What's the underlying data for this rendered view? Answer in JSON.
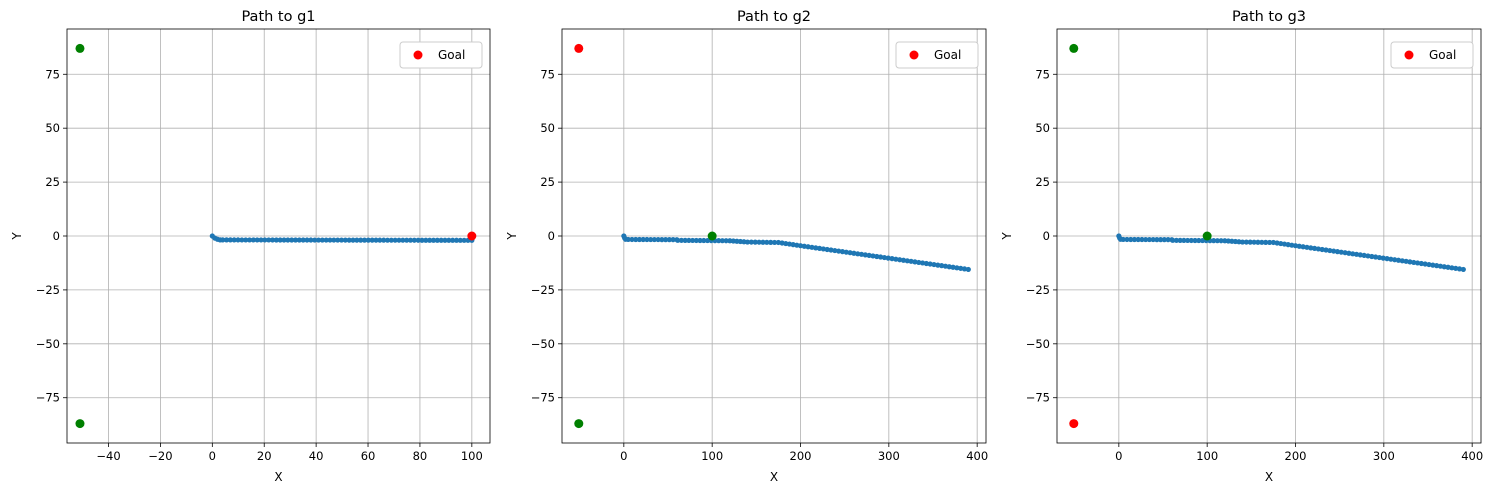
{
  "chart_data": [
    {
      "type": "scatter",
      "title": "Path to g1",
      "xlabel": "X",
      "ylabel": "Y",
      "xlim": [
        -56,
        107
      ],
      "ylim": [
        -96,
        96
      ],
      "xticks": [
        -40,
        -20,
        0,
        20,
        40,
        60,
        80,
        100
      ],
      "yticks": [
        -75,
        -50,
        -25,
        0,
        25,
        50,
        75
      ],
      "grid": true,
      "legend": {
        "position": "top-right",
        "label": "Goal"
      },
      "path": {
        "color": "#1f77b4",
        "points": [
          [
            0,
            0
          ],
          [
            1,
            -1
          ],
          [
            2,
            -1.5
          ],
          [
            3,
            -1.8
          ],
          [
            4,
            -1.8
          ],
          [
            100,
            -2
          ]
        ]
      },
      "other_goals": {
        "color": "#008000",
        "points": [
          [
            -51,
            87
          ],
          [
            -51,
            -87
          ]
        ]
      },
      "goal": {
        "color": "#ff0000",
        "label": "Goal",
        "points": [
          [
            100,
            0
          ]
        ]
      }
    },
    {
      "type": "scatter",
      "title": "Path to g2",
      "xlabel": "X",
      "ylabel": "Y",
      "xlim": [
        -70,
        410
      ],
      "ylim": [
        -96,
        96
      ],
      "xticks": [
        0,
        100,
        200,
        300,
        400
      ],
      "yticks": [
        -75,
        -50,
        -25,
        0,
        25,
        50,
        75
      ],
      "grid": true,
      "legend": {
        "position": "top-right",
        "label": "Goal"
      },
      "path": {
        "color": "#1f77b4",
        "points": [
          [
            0,
            0
          ],
          [
            1,
            -1
          ],
          [
            2,
            -1.5
          ],
          [
            5,
            -1.6
          ],
          [
            60,
            -1.7
          ],
          [
            61,
            -2
          ],
          [
            120,
            -2.2
          ],
          [
            140,
            -2.8
          ],
          [
            175,
            -3
          ],
          [
            200,
            -4.5
          ],
          [
            390,
            -15.5
          ]
        ]
      },
      "other_goals": {
        "color": "#008000",
        "points": [
          [
            100,
            0
          ],
          [
            -51,
            -87
          ]
        ]
      },
      "goal": {
        "color": "#ff0000",
        "label": "Goal",
        "points": [
          [
            -51,
            87
          ]
        ]
      }
    },
    {
      "type": "scatter",
      "title": "Path to g3",
      "xlabel": "X",
      "ylabel": "Y",
      "xlim": [
        -70,
        410
      ],
      "ylim": [
        -96,
        96
      ],
      "xticks": [
        0,
        100,
        200,
        300,
        400
      ],
      "yticks": [
        -75,
        -50,
        -25,
        0,
        25,
        50,
        75
      ],
      "grid": true,
      "legend": {
        "position": "top-right",
        "label": "Goal"
      },
      "path": {
        "color": "#1f77b4",
        "points": [
          [
            0,
            0
          ],
          [
            1,
            -1
          ],
          [
            2,
            -1.5
          ],
          [
            5,
            -1.6
          ],
          [
            60,
            -1.7
          ],
          [
            61,
            -2
          ],
          [
            120,
            -2.2
          ],
          [
            140,
            -2.8
          ],
          [
            175,
            -3
          ],
          [
            200,
            -4.5
          ],
          [
            390,
            -15.5
          ]
        ]
      },
      "other_goals": {
        "color": "#008000",
        "points": [
          [
            -51,
            87
          ],
          [
            100,
            0
          ]
        ]
      },
      "goal": {
        "color": "#ff0000",
        "label": "Goal",
        "points": [
          [
            -51,
            -87
          ]
        ]
      }
    }
  ]
}
